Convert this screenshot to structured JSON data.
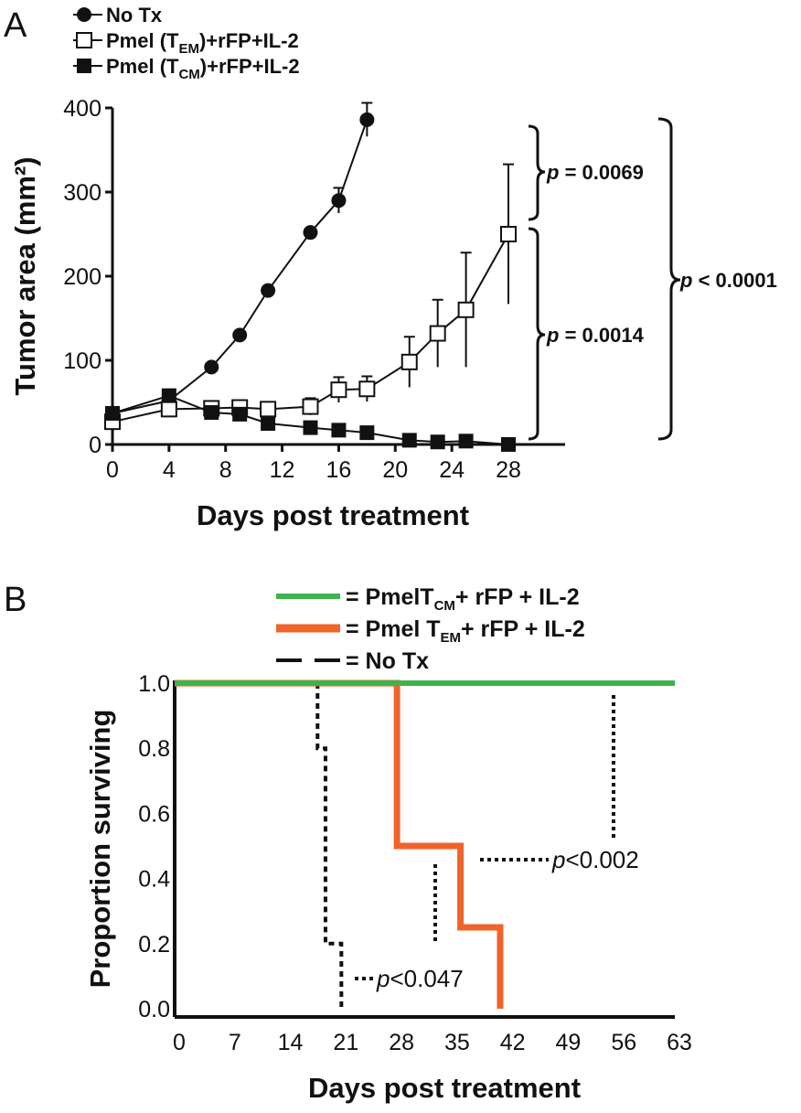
{
  "panel_a_letter": "A",
  "panel_b_letter": "B",
  "p_labels": {
    "a1": {
      "italic": "p",
      "rest": " = 0.0069"
    },
    "a2": {
      "italic": "p",
      "rest": " = 0.0014"
    },
    "a3": {
      "italic": "p",
      "rest": " < 0.0001"
    },
    "b1": {
      "italic": "p",
      "rest": "<0.002"
    },
    "b2": {
      "italic": "p",
      "rest": "<0.047"
    }
  },
  "chart_data": [
    {
      "type": "line",
      "panel": "A",
      "xlabel": "Days post treatment",
      "ylabel": "Tumor area (mm²)",
      "xlim": [
        0,
        28
      ],
      "ylim": [
        0,
        400
      ],
      "xticks": [
        0,
        4,
        8,
        12,
        16,
        20,
        24,
        28
      ],
      "yticks": [
        0,
        100,
        200,
        300,
        400
      ],
      "legend_position": "top-left",
      "series": [
        {
          "name": "No Tx",
          "marker": "filled-circle",
          "x": [
            0,
            4,
            7,
            9,
            11,
            14,
            16,
            18
          ],
          "y": [
            37,
            52,
            92,
            130,
            183,
            252,
            290,
            386
          ],
          "err": [
            0,
            0,
            0,
            0,
            0,
            0,
            15,
            20
          ]
        },
        {
          "name": "Pmel (TEM)+rFP+IL-2",
          "name_parts": {
            "a": "Pmel (T",
            "sub": "EM",
            "b": ")+rFP+IL-2"
          },
          "marker": "open-square",
          "x": [
            0,
            4,
            7,
            9,
            11,
            14,
            16,
            18,
            21,
            23,
            25,
            28
          ],
          "y": [
            27,
            42,
            43,
            44,
            42,
            45,
            65,
            66,
            98,
            132,
            160,
            250
          ],
          "err": [
            0,
            0,
            0,
            0,
            0,
            10,
            15,
            15,
            30,
            40,
            68,
            83
          ]
        },
        {
          "name": "Pmel (TCM)+rFP+IL-2",
          "name_parts": {
            "a": "Pmel (T",
            "sub": "CM",
            "b": ")+rFP+IL-2"
          },
          "marker": "filled-square",
          "x": [
            0,
            4,
            7,
            9,
            11,
            14,
            16,
            18,
            21,
            23,
            25,
            28
          ],
          "y": [
            37,
            58,
            38,
            36,
            25,
            20,
            17,
            14,
            5,
            3,
            4,
            0
          ],
          "err": [
            0,
            0,
            0,
            0,
            0,
            0,
            0,
            0,
            0,
            0,
            0,
            0
          ]
        }
      ]
    },
    {
      "type": "line",
      "panel": "B",
      "xlabel": "Days post treatment",
      "ylabel": "Proportion surviving",
      "xlim": [
        0,
        63
      ],
      "ylim": [
        0,
        1
      ],
      "xticks": [
        0,
        7,
        14,
        21,
        28,
        35,
        42,
        49,
        56,
        63
      ],
      "yticks": [
        "0.0",
        "0.2",
        "0.4",
        "0.6",
        "0.8",
        "1.0"
      ],
      "legend_position": "top",
      "series": [
        {
          "name": "= PmelTCM+ rFP + IL-2",
          "name_parts": {
            "a": "= PmelT",
            "sub": "CM",
            "b": "+ rFP + IL-2"
          },
          "color": "#3cb44b",
          "style": "solid",
          "x": [
            0,
            63
          ],
          "y": [
            1.0,
            1.0
          ]
        },
        {
          "name": "= Pmel TEM+ rFP + IL-2",
          "name_parts": {
            "a": "= Pmel T",
            "sub": "EM",
            "b": "+ rFP + IL-2"
          },
          "color": "#f0632a",
          "style": "solid-thick",
          "x": [
            0,
            28,
            28,
            36,
            36,
            41,
            41
          ],
          "y": [
            1.0,
            1.0,
            0.5,
            0.5,
            0.25,
            0.25,
            0.0
          ]
        },
        {
          "name": "= No Tx",
          "color": "#111111",
          "style": "dashed",
          "x": [
            18,
            18,
            19,
            19,
            21,
            21
          ],
          "y": [
            1.0,
            0.8,
            0.8,
            0.2,
            0.2,
            0.0
          ]
        }
      ]
    }
  ]
}
